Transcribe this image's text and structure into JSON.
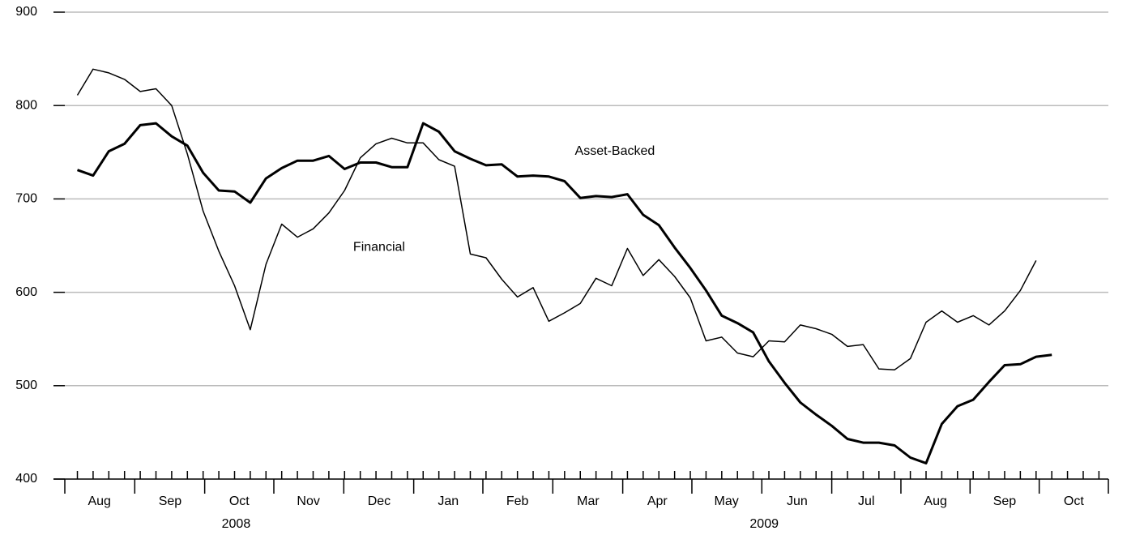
{
  "chart_data": {
    "type": "line",
    "x": [
      0,
      1,
      2,
      3,
      4,
      5,
      6,
      7,
      8,
      9,
      10,
      11,
      12,
      13,
      14,
      15,
      16,
      17,
      18,
      19,
      20,
      21,
      22,
      23,
      24,
      25,
      26,
      27,
      28,
      29,
      30,
      31,
      32,
      33,
      34,
      35,
      36,
      37,
      38,
      39,
      40,
      41,
      42,
      43,
      44,
      45,
      46,
      47,
      48,
      49,
      50,
      51,
      52,
      53,
      54,
      55,
      56,
      57,
      58,
      59,
      60,
      61,
      62
    ],
    "series": [
      {
        "name": "Asset-Backed",
        "color": "#000000",
        "width": 3,
        "values": [
          731,
          725,
          751,
          759,
          779,
          781,
          767,
          757,
          728,
          709,
          708,
          696,
          722,
          733,
          741,
          741,
          746,
          732,
          739,
          739,
          734,
          734,
          781,
          772,
          751,
          743,
          736,
          737,
          724,
          725,
          724,
          719,
          701,
          703,
          702,
          705,
          683,
          672,
          648,
          626,
          602,
          575,
          567,
          557,
          526,
          503,
          482,
          469,
          457,
          443,
          439,
          439,
          436,
          423,
          417,
          459,
          478,
          485,
          504,
          522,
          523,
          531,
          533
        ]
      },
      {
        "name": "Financial",
        "color": "#000000",
        "width": 1.5,
        "values": [
          811,
          839,
          835,
          828,
          815,
          818,
          800,
          748,
          687,
          644,
          607,
          560,
          630,
          673,
          659,
          668,
          685,
          709,
          744,
          759,
          765,
          760,
          760,
          742,
          735,
          641,
          637,
          614,
          595,
          605,
          569,
          578,
          588,
          615,
          607,
          647,
          618,
          635,
          617,
          594,
          548,
          552,
          535,
          531,
          548,
          547,
          565,
          561,
          555,
          542,
          544,
          518,
          517,
          529,
          568,
          580,
          568,
          575,
          565,
          580,
          602,
          634,
          null
        ]
      }
    ],
    "annotations": [
      {
        "text": "Asset-Backed",
        "x": 34.2,
        "y": 751,
        "series": 0
      },
      {
        "text": "Financial",
        "x": 19.2,
        "y": 648,
        "series": 1
      }
    ],
    "xlim": [
      -0.8,
      65.6
    ],
    "xticks": [
      {
        "value": 1.4,
        "label": "Aug"
      },
      {
        "value": 5.9,
        "label": "Sep"
      },
      {
        "value": 10.3,
        "label": "Oct"
      },
      {
        "value": 14.7,
        "label": "Nov"
      },
      {
        "value": 19.2,
        "label": "Dec"
      },
      {
        "value": 23.6,
        "label": "Jan"
      },
      {
        "value": 28.0,
        "label": "Feb"
      },
      {
        "value": 32.5,
        "label": "Mar"
      },
      {
        "value": 36.9,
        "label": "Apr"
      },
      {
        "value": 41.3,
        "label": "May"
      },
      {
        "value": 45.8,
        "label": "Jun"
      },
      {
        "value": 50.2,
        "label": "Jul"
      },
      {
        "value": 54.6,
        "label": "Aug"
      },
      {
        "value": 59.0,
        "label": "Sep"
      },
      {
        "value": 63.4,
        "label": "Oct"
      }
    ],
    "years": [
      {
        "value": 10.1,
        "label": "2008"
      },
      {
        "value": 43.7,
        "label": "2009"
      }
    ],
    "ylim": [
      400,
      900
    ],
    "yticks": [
      400,
      500,
      600,
      700,
      800,
      900
    ],
    "grid": true
  }
}
